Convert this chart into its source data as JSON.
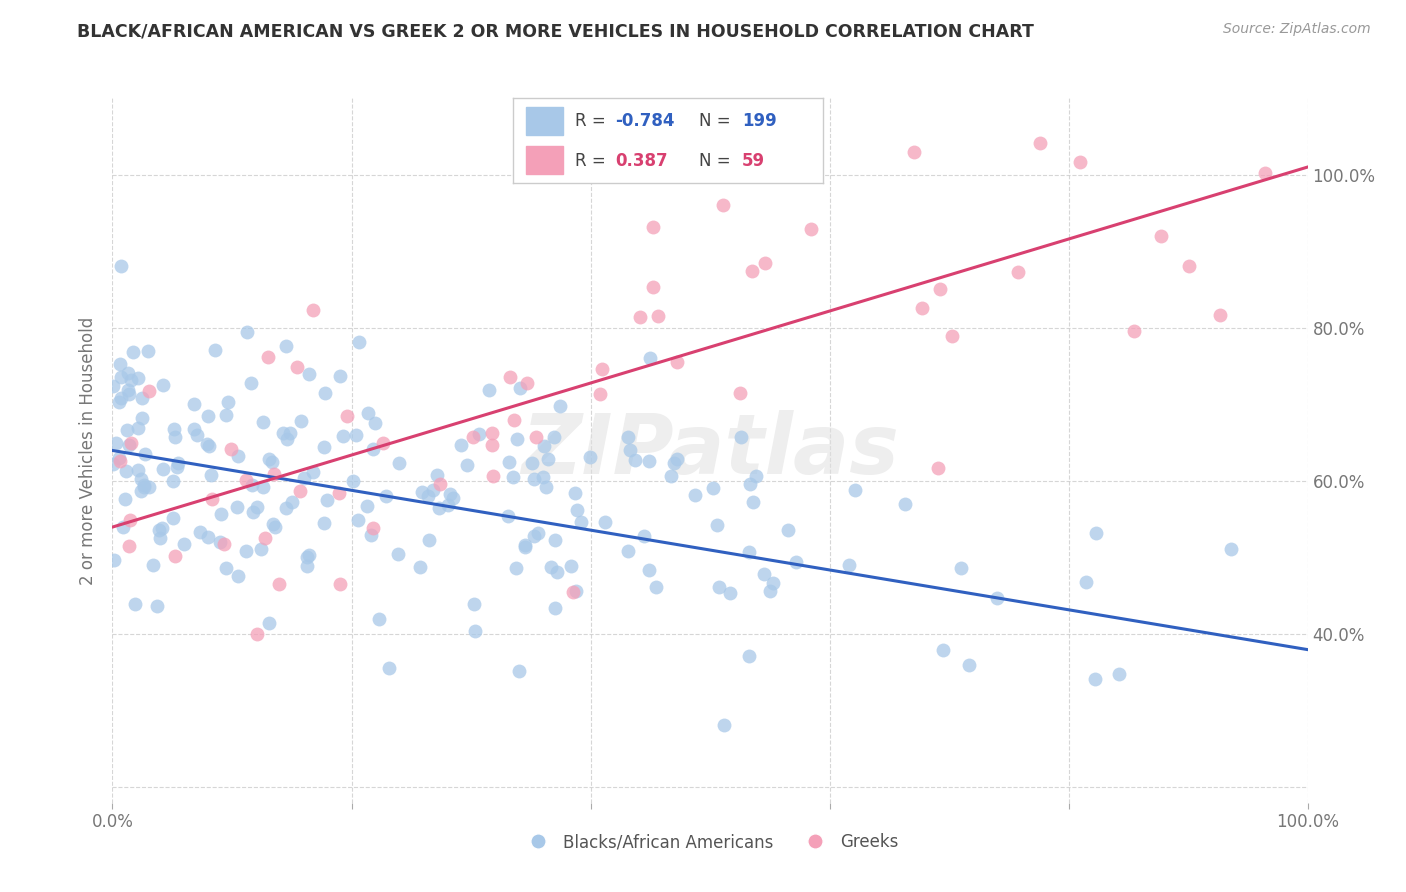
{
  "title": "BLACK/AFRICAN AMERICAN VS GREEK 2 OR MORE VEHICLES IN HOUSEHOLD CORRELATION CHART",
  "source": "Source: ZipAtlas.com",
  "ylabel": "2 or more Vehicles in Household",
  "blue_R": -0.784,
  "blue_N": 199,
  "pink_R": 0.387,
  "pink_N": 59,
  "blue_color": "#a8c8e8",
  "pink_color": "#f4a0b8",
  "blue_line_color": "#3060c0",
  "pink_line_color": "#d84070",
  "legend_label_blue": "Blacks/African Americans",
  "legend_label_pink": "Greeks",
  "background_color": "#ffffff",
  "xlim": [
    0,
    100
  ],
  "ylim": [
    18,
    110
  ],
  "ytick_positions": [
    20,
    40,
    60,
    80,
    100
  ],
  "ytick_labels": [
    "",
    "40.0%",
    "60.0%",
    "80.0%",
    "100.0%"
  ],
  "blue_trendline_y0": 64,
  "blue_trendline_y1": 38,
  "pink_trendline_y0": 54,
  "pink_trendline_y1": 101,
  "blue_seed": 12,
  "pink_seed": 7,
  "watermark_text": "ZIPatlas"
}
